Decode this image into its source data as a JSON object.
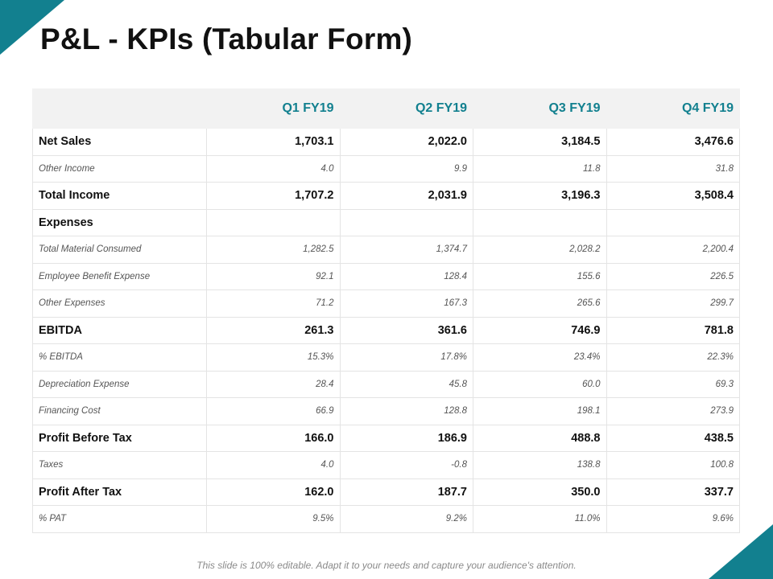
{
  "title": "P&L - KPIs (Tabular Form)",
  "colors": {
    "accent": "#12808f",
    "header_bg": "#f2f2f2"
  },
  "table": {
    "headers": [
      "",
      "Q1 FY19",
      "Q2 FY19",
      "Q3 FY19",
      "Q4 FY19"
    ],
    "rows": [
      {
        "label": "Net Sales",
        "style": "major",
        "values": [
          "1,703.1",
          "2,022.0",
          "3,184.5",
          "3,476.6"
        ]
      },
      {
        "label": "Other Income",
        "style": "minor",
        "values": [
          "4.0",
          "9.9",
          "11.8",
          "31.8"
        ]
      },
      {
        "label": "Total Income",
        "style": "major",
        "values": [
          "1,707.2",
          "2,031.9",
          "3,196.3",
          "3,508.4"
        ]
      },
      {
        "label": "Expenses",
        "style": "major",
        "values": [
          "",
          "",
          "",
          ""
        ]
      },
      {
        "label": "Total Material  Consumed",
        "style": "minor",
        "values": [
          "1,282.5",
          "1,374.7",
          "2,028.2",
          "2,200.4"
        ]
      },
      {
        "label": "Employee  Benefit Expense",
        "style": "minor",
        "values": [
          "92.1",
          "128.4",
          "155.6",
          "226.5"
        ]
      },
      {
        "label": "Other Expenses",
        "style": "minor",
        "values": [
          "71.2",
          "167.3",
          "265.6",
          "299.7"
        ]
      },
      {
        "label": "EBITDA",
        "style": "major",
        "values": [
          "261.3",
          "361.6",
          "746.9",
          "781.8"
        ]
      },
      {
        "label": "% EBITDA",
        "style": "minor",
        "values": [
          "15.3%",
          "17.8%",
          "23.4%",
          "22.3%"
        ]
      },
      {
        "label": "Depreciation  Expense",
        "style": "minor",
        "values": [
          "28.4",
          "45.8",
          "60.0",
          "69.3"
        ]
      },
      {
        "label": "Financing Cost",
        "style": "minor",
        "values": [
          "66.9",
          "128.8",
          "198.1",
          "273.9"
        ]
      },
      {
        "label": "Profit Before Tax",
        "style": "major",
        "values": [
          "166.0",
          "186.9",
          "488.8",
          "438.5"
        ]
      },
      {
        "label": "Taxes",
        "style": "minor",
        "values": [
          "4.0",
          "-0.8",
          "138.8",
          "100.8"
        ]
      },
      {
        "label": "Profit After Tax",
        "style": "major",
        "values": [
          "162.0",
          "187.7",
          "350.0",
          "337.7"
        ]
      },
      {
        "label": "% PAT",
        "style": "minor",
        "values": [
          "9.5%",
          "9.2%",
          "11.0%",
          "9.6%"
        ]
      }
    ]
  },
  "footer": "This slide is 100% editable. Adapt it to your needs and capture your audience's attention."
}
